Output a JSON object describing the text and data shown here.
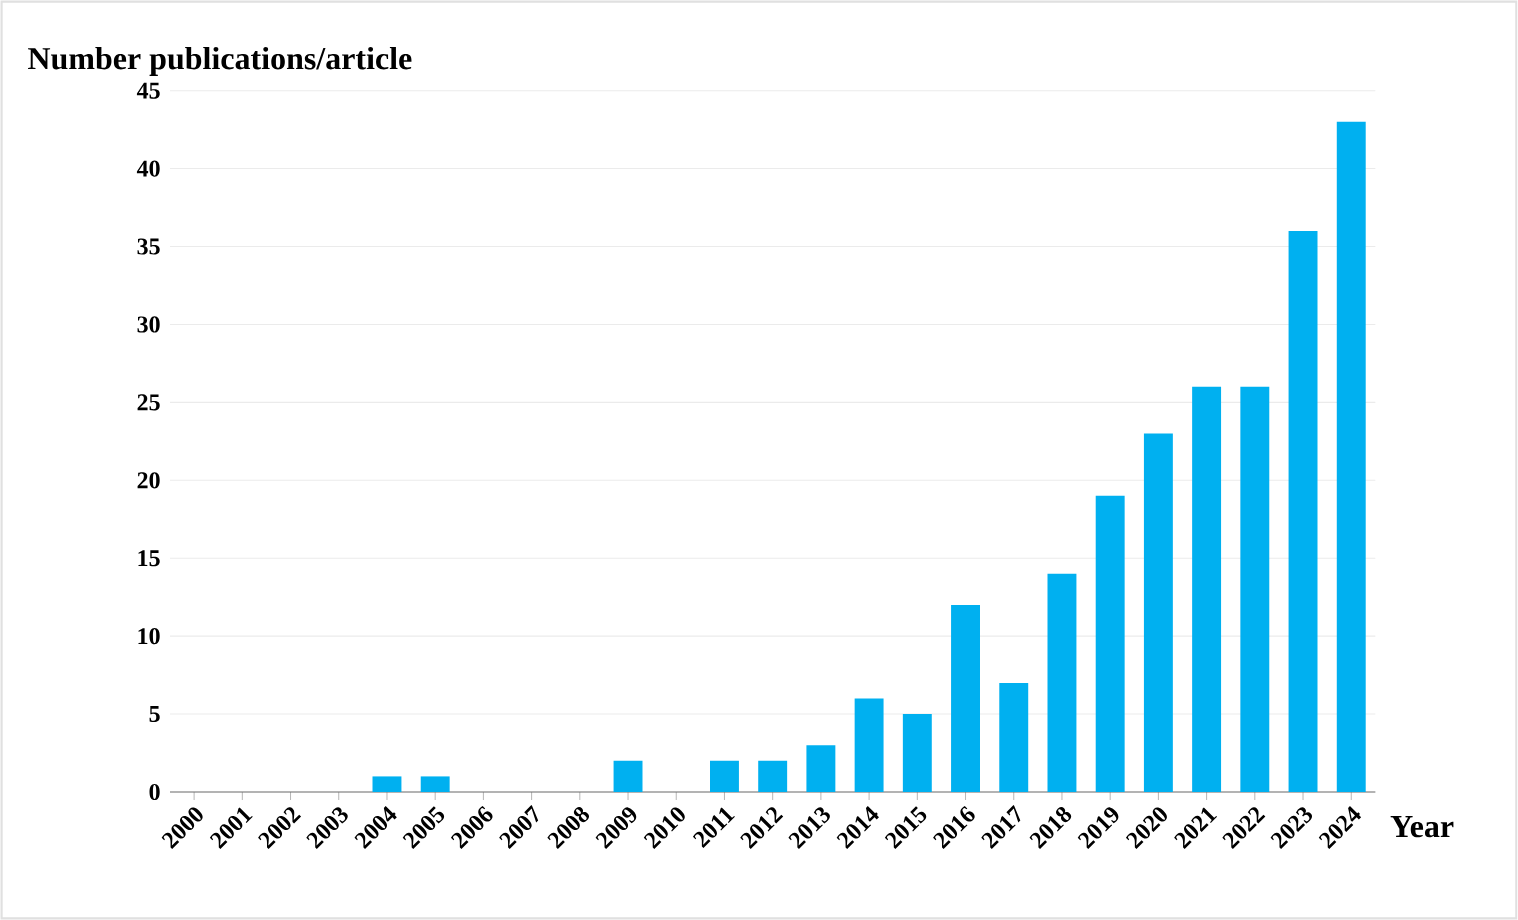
{
  "chart_data": {
    "type": "bar",
    "ylabel": "Number publications/article",
    "xlabel": "Year",
    "categories": [
      "2000",
      "2001",
      "2002",
      "2003",
      "2004",
      "2005",
      "2006",
      "2007",
      "2008",
      "2009",
      "2010",
      "2011",
      "2012",
      "2013",
      "2014",
      "2015",
      "2016",
      "2017",
      "2018",
      "2019",
      "2020",
      "2021",
      "2022",
      "2023",
      "2024"
    ],
    "values": [
      0,
      0,
      0,
      0,
      1,
      1,
      0,
      0,
      0,
      2,
      0,
      2,
      2,
      3,
      6,
      5,
      12,
      7,
      14,
      19,
      23,
      26,
      26,
      36,
      43
    ],
    "color": "#00b0f0",
    "ylim": [
      0,
      45
    ],
    "yticks": [
      0,
      5,
      10,
      15,
      20,
      25,
      30,
      35,
      40,
      45
    ],
    "grid": "y"
  }
}
